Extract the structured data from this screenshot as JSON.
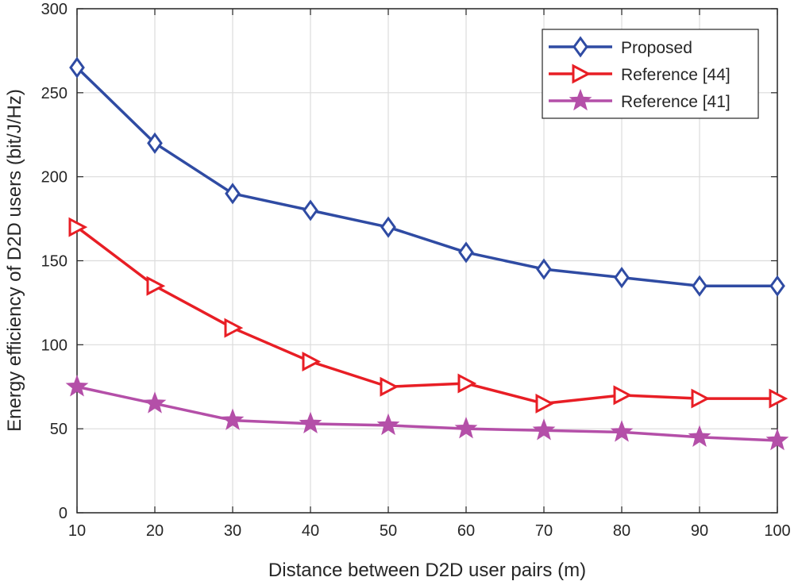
{
  "chart_data": {
    "type": "line",
    "title": "",
    "xlabel": "Distance between D2D user pairs (m)",
    "ylabel": "Energy efficiency of D2D users (bit/J/Hz)",
    "xlim": [
      10,
      100
    ],
    "ylim": [
      0,
      300
    ],
    "xticks": [
      10,
      20,
      30,
      40,
      50,
      60,
      70,
      80,
      90,
      100
    ],
    "yticks": [
      0,
      50,
      100,
      150,
      200,
      250,
      300
    ],
    "grid": true,
    "legend_position": "top-right",
    "x": [
      10,
      20,
      30,
      40,
      50,
      60,
      70,
      80,
      90,
      100
    ],
    "series": [
      {
        "name": "Proposed",
        "color": "#2f4ba3",
        "marker": "diamond",
        "values": [
          265,
          220,
          190,
          180,
          170,
          155,
          145,
          140,
          135,
          135
        ]
      },
      {
        "name": "Reference [44]",
        "color": "#e81e25",
        "marker": "triangle-right",
        "values": [
          170,
          135,
          110,
          90,
          75,
          77,
          65,
          70,
          68,
          68
        ]
      },
      {
        "name": "Reference [41]",
        "color": "#b44fa8",
        "marker": "star",
        "values": [
          75,
          65,
          55,
          53,
          52,
          50,
          49,
          48,
          45,
          43
        ]
      }
    ]
  }
}
